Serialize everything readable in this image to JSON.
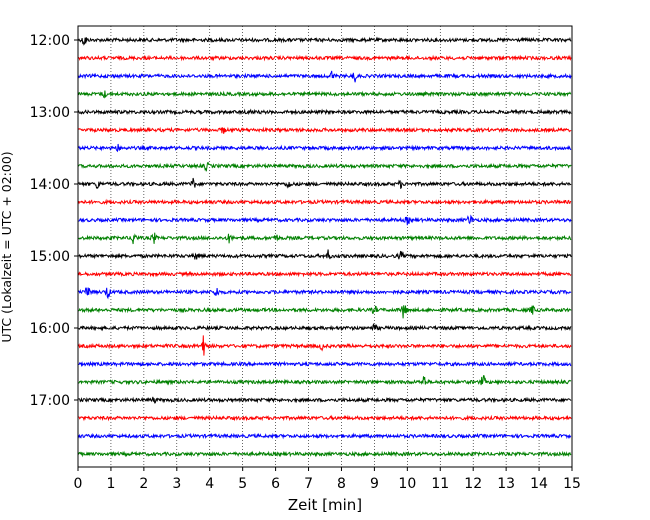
{
  "chart_data": {
    "type": "line",
    "title": "",
    "xlabel": "Zeit  [min]",
    "ylabel": "UTC (Lokalzeit = UTC + 02:00)",
    "xlim": [
      0,
      15
    ],
    "x_ticks": [
      "0",
      "1",
      "2",
      "3",
      "4",
      "5",
      "6",
      "7",
      "8",
      "9",
      "10",
      "11",
      "12",
      "13",
      "14",
      "15"
    ],
    "y_ticks": [
      "12:00",
      "13:00",
      "14:00",
      "15:00",
      "16:00",
      "17:00"
    ],
    "grid": "vertical dotted",
    "legend": "none",
    "trace_interval_min": 15,
    "trace_colors": [
      "#000000",
      "#ff0000",
      "#0000ff",
      "#008000"
    ],
    "traces": [
      {
        "start": "12:00",
        "color": "#000000",
        "events": [
          {
            "t": 0.2,
            "amp": 6
          }
        ]
      },
      {
        "start": "12:15",
        "color": "#ff0000",
        "events": []
      },
      {
        "start": "12:30",
        "color": "#0000ff",
        "events": [
          {
            "t": 7.7,
            "amp": 5
          },
          {
            "t": 8.4,
            "amp": 5
          }
        ]
      },
      {
        "start": "12:45",
        "color": "#008000",
        "events": [
          {
            "t": 0.8,
            "amp": 3
          }
        ]
      },
      {
        "start": "13:00",
        "color": "#000000",
        "events": [
          {
            "t": 5.2,
            "amp": 3
          }
        ]
      },
      {
        "start": "13:15",
        "color": "#ff0000",
        "events": [
          {
            "t": 4.4,
            "amp": 3
          }
        ]
      },
      {
        "start": "13:30",
        "color": "#0000ff",
        "events": [
          {
            "t": 1.2,
            "amp": 3
          }
        ]
      },
      {
        "start": "13:45",
        "color": "#008000",
        "events": [
          {
            "t": 3.9,
            "amp": 4
          }
        ]
      },
      {
        "start": "14:00",
        "color": "#000000",
        "events": [
          {
            "t": 0.6,
            "amp": 4
          },
          {
            "t": 3.5,
            "amp": 5
          },
          {
            "t": 6.4,
            "amp": 4
          },
          {
            "t": 9.8,
            "amp": 3
          }
        ]
      },
      {
        "start": "14:15",
        "color": "#ff0000",
        "events": []
      },
      {
        "start": "14:30",
        "color": "#0000ff",
        "events": [
          {
            "t": 10.0,
            "amp": 4
          },
          {
            "t": 11.9,
            "amp": 6
          }
        ]
      },
      {
        "start": "14:45",
        "color": "#008000",
        "events": [
          {
            "t": 1.7,
            "amp": 8
          },
          {
            "t": 2.3,
            "amp": 5
          },
          {
            "t": 4.6,
            "amp": 4
          },
          {
            "t": 6.0,
            "amp": 4
          }
        ]
      },
      {
        "start": "15:00",
        "color": "#000000",
        "events": [
          {
            "t": 3.6,
            "amp": 4
          },
          {
            "t": 7.6,
            "amp": 5
          },
          {
            "t": 9.8,
            "amp": 4
          }
        ]
      },
      {
        "start": "15:15",
        "color": "#ff0000",
        "events": []
      },
      {
        "start": "15:30",
        "color": "#0000ff",
        "events": [
          {
            "t": 0.3,
            "amp": 8
          },
          {
            "t": 0.9,
            "amp": 6
          },
          {
            "t": 4.2,
            "amp": 5
          }
        ]
      },
      {
        "start": "15:45",
        "color": "#008000",
        "events": [
          {
            "t": 9.0,
            "amp": 4
          },
          {
            "t": 9.9,
            "amp": 10
          },
          {
            "t": 13.8,
            "amp": 4
          }
        ]
      },
      {
        "start": "16:00",
        "color": "#000000",
        "events": [
          {
            "t": 9.0,
            "amp": 3
          }
        ]
      },
      {
        "start": "16:15",
        "color": "#ff0000",
        "events": [
          {
            "t": 3.8,
            "amp": 10
          },
          {
            "t": 7.4,
            "amp": 3
          }
        ]
      },
      {
        "start": "16:30",
        "color": "#0000ff",
        "events": []
      },
      {
        "start": "16:45",
        "color": "#008000",
        "events": [
          {
            "t": 10.5,
            "amp": 6
          },
          {
            "t": 12.3,
            "amp": 6
          }
        ]
      },
      {
        "start": "17:00",
        "color": "#000000",
        "events": [
          {
            "t": 2.3,
            "amp": 3
          }
        ]
      },
      {
        "start": "17:15",
        "color": "#ff0000",
        "events": []
      },
      {
        "start": "17:30",
        "color": "#0000ff",
        "events": []
      },
      {
        "start": "17:45",
        "color": "#008000",
        "events": []
      }
    ]
  }
}
